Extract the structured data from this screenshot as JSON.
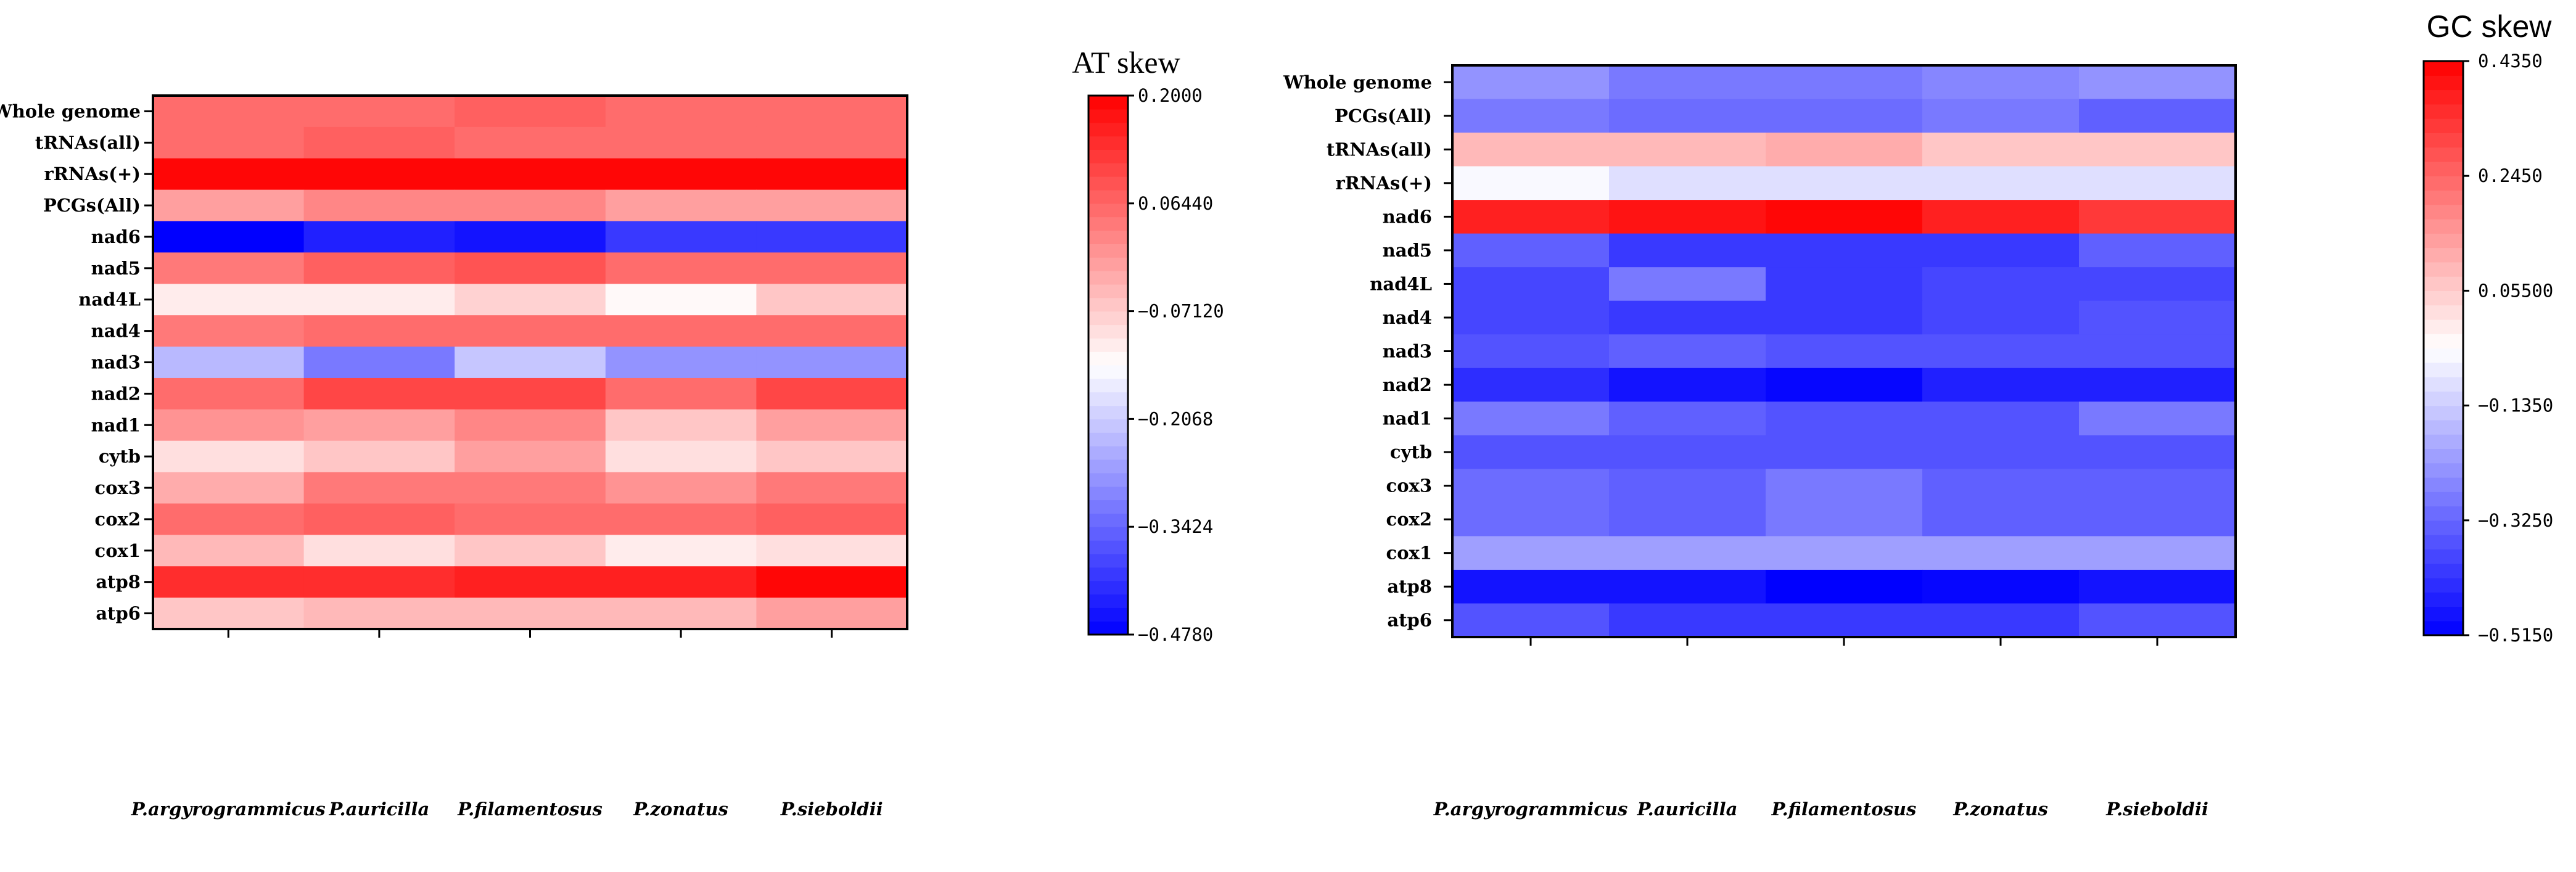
{
  "colors": {
    "negative": "#0000ff",
    "neutral": "#ffffff",
    "positive": "#ff0000"
  },
  "chart_data": [
    {
      "type": "heatmap",
      "title": "AT skew",
      "columns": [
        "P.argyrogrammicus",
        "P.auricilla",
        "P.filamentosus",
        "P.zonatus",
        "P.sieboldii"
      ],
      "rows": [
        "Whole genome",
        "tRNAs(all)",
        "rRNAs(+)",
        "PCGs(All)",
        "nad6",
        "nad5",
        "nad4L",
        "nad4",
        "nad3",
        "nad2",
        "nad1",
        "cytb",
        "cox3",
        "cox2",
        "cox1",
        "atp8",
        "atp6"
      ],
      "values": [
        [
          0.06,
          0.06,
          0.08,
          0.06,
          0.06
        ],
        [
          0.05,
          0.07,
          0.05,
          0.05,
          0.05
        ],
        [
          0.2,
          0.2,
          0.2,
          0.2,
          0.2
        ],
        [
          -0.02,
          0.02,
          0.02,
          -0.02,
          -0.02
        ],
        [
          -0.478,
          -0.43,
          -0.46,
          -0.4,
          -0.4
        ],
        [
          0.04,
          0.08,
          0.09,
          0.05,
          0.05
        ],
        [
          -0.12,
          -0.12,
          -0.08,
          -0.13,
          -0.07
        ],
        [
          0.04,
          0.06,
          0.06,
          0.05,
          0.06
        ],
        [
          -0.24,
          -0.32,
          -0.22,
          -0.29,
          -0.29
        ],
        [
          0.05,
          0.1,
          0.1,
          0.05,
          0.1
        ],
        [
          0.0,
          -0.02,
          0.02,
          -0.06,
          -0.01
        ],
        [
          -0.1,
          -0.06,
          -0.02,
          -0.1,
          -0.06
        ],
        [
          -0.03,
          0.04,
          0.04,
          0.01,
          0.04
        ],
        [
          0.06,
          0.08,
          0.06,
          0.06,
          0.08
        ],
        [
          -0.04,
          -0.1,
          -0.06,
          -0.11,
          -0.09
        ],
        [
          0.14,
          0.14,
          0.16,
          0.16,
          0.19
        ],
        [
          -0.07,
          -0.05,
          -0.05,
          -0.05,
          -0.01
        ]
      ],
      "colorbar": {
        "min": -0.478,
        "max": 0.2,
        "ticks": [
          "0.2000",
          "0.06440",
          "−0.07120",
          "−0.2068",
          "−0.3424",
          "−0.4780"
        ]
      }
    },
    {
      "type": "heatmap",
      "title": "GC skew",
      "columns": [
        "P.argyrogrammicus",
        "P.auricilla",
        "P.filamentosus",
        "P.zonatus",
        "P.sieboldii"
      ],
      "rows": [
        "Whole genome",
        "PCGs(All)",
        "tRNAs(all)",
        "rRNAs(+)",
        "nad6",
        "nad5",
        "nad4L",
        "nad4",
        "nad3",
        "nad2",
        "nad1",
        "cytb",
        "cox3",
        "cox2",
        "cox1",
        "atp8",
        "atp6"
      ],
      "values": [
        [
          -0.24,
          -0.28,
          -0.28,
          -0.26,
          -0.25
        ],
        [
          -0.28,
          -0.32,
          -0.32,
          -0.3,
          -0.34
        ],
        [
          0.08,
          0.08,
          0.12,
          0.07,
          0.07
        ],
        [
          -0.05,
          -0.1,
          -0.1,
          -0.1,
          -0.1
        ],
        [
          0.38,
          0.4,
          0.43,
          0.38,
          0.34
        ],
        [
          -0.34,
          -0.4,
          -0.4,
          -0.4,
          -0.33
        ],
        [
          -0.38,
          -0.3,
          -0.4,
          -0.38,
          -0.38
        ],
        [
          -0.38,
          -0.41,
          -0.41,
          -0.38,
          -0.35
        ],
        [
          -0.37,
          -0.33,
          -0.35,
          -0.37,
          -0.35
        ],
        [
          -0.44,
          -0.48,
          -0.5,
          -0.45,
          -0.45
        ],
        [
          -0.3,
          -0.33,
          -0.37,
          -0.35,
          -0.29
        ],
        [
          -0.35,
          -0.37,
          -0.37,
          -0.37,
          -0.35
        ],
        [
          -0.31,
          -0.34,
          -0.29,
          -0.34,
          -0.33
        ],
        [
          -0.31,
          -0.34,
          -0.29,
          -0.33,
          -0.33
        ],
        [
          -0.21,
          -0.21,
          -0.21,
          -0.21,
          -0.21
        ],
        [
          -0.48,
          -0.48,
          -0.515,
          -0.5,
          -0.47
        ],
        [
          -0.37,
          -0.4,
          -0.4,
          -0.41,
          -0.37
        ]
      ],
      "colorbar": {
        "min": -0.515,
        "max": 0.435,
        "ticks": [
          "0.4350",
          "0.2450",
          "0.05500",
          "−0.1350",
          "−0.3250",
          "−0.5150"
        ]
      }
    }
  ]
}
